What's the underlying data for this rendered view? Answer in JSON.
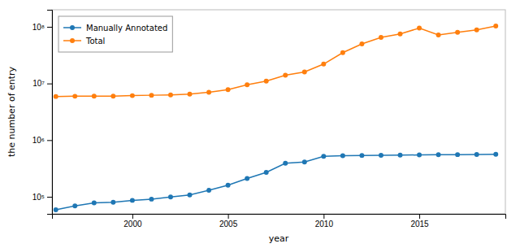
{
  "chart_data": {
    "type": "line",
    "x": [
      1996,
      1997,
      1998,
      1999,
      2000,
      2001,
      2002,
      2003,
      2004,
      2005,
      2006,
      2007,
      2008,
      2009,
      2010,
      2011,
      2012,
      2013,
      2014,
      2015,
      2016,
      2017,
      2018,
      2019
    ],
    "series": [
      {
        "name": "Manually Annotated",
        "color": "#1f77b4",
        "marker": "circle",
        "values": [
          59021,
          69113,
          77977,
          80000,
          86593,
          91000,
          99000,
          108000,
          130000,
          160000,
          210000,
          270000,
          390000,
          410000,
          516081,
          530000,
          537505,
          540958,
          542782,
          548454,
          553474,
          555594,
          557823,
          560523
        ]
      },
      {
        "name": "Total",
        "color": "#ff7f0e",
        "marker": "circle",
        "values": [
          5900000,
          5950000,
          5970000,
          5980000,
          6100000,
          6200000,
          6300000,
          6500000,
          7000000,
          7800000,
          9500000,
          11000000,
          14000000,
          16000000,
          22000000,
          35000000,
          50000000,
          65000000,
          75000000,
          95000000,
          72000000,
          80000000,
          88000000,
          103000000
        ]
      }
    ],
    "xlabel": "year",
    "ylabel": "the number of entry",
    "xlim": [
      1995.8,
      2019.5
    ],
    "ylim": [
      50000,
      200000000
    ],
    "xticks": [
      2000,
      2005,
      2010,
      2015
    ],
    "yticks": [
      {
        "value": 100000,
        "label": "10⁵"
      },
      {
        "value": 1000000,
        "label": "10⁶"
      },
      {
        "value": 10000000,
        "label": "10⁷"
      },
      {
        "value": 100000000,
        "label": "10⁸"
      }
    ],
    "log": "y",
    "legend": "upper left"
  }
}
